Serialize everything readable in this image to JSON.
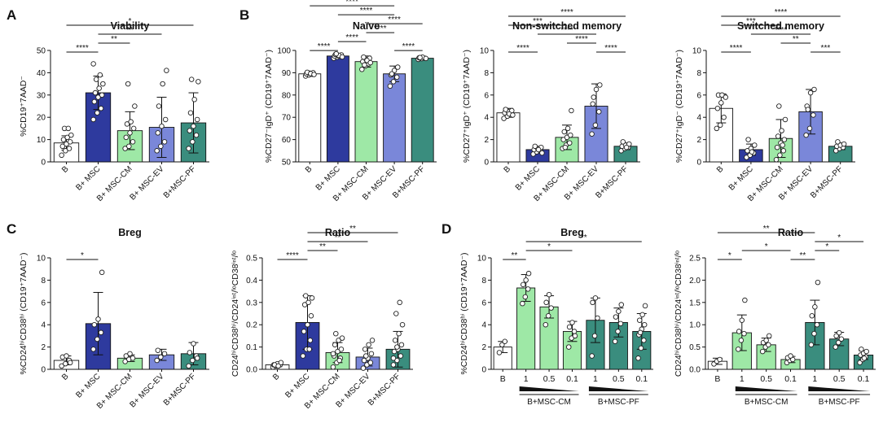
{
  "colors": {
    "B": "#ffffff",
    "MSC": "#2e3a9e",
    "CM": "#9ee8a6",
    "EV": "#7a87d9",
    "PF": "#3a8d7e"
  },
  "panel_letters": [
    "A",
    "B",
    "C",
    "D"
  ],
  "chart_data": [
    {
      "id": "viability",
      "letter": "A",
      "type": "bar",
      "title": "Viability",
      "ylabel": "%CD19⁺7AAD⁻",
      "ylim": [
        0,
        50
      ],
      "yticks": [
        0,
        10,
        20,
        30,
        40,
        50
      ],
      "categories": [
        "B",
        "B+ MSC",
        "B+ MSC-CM",
        "B+ MSC-EV",
        "B+MSC-PF"
      ],
      "groups": [
        "B",
        "MSC",
        "CM",
        "EV",
        "PF"
      ],
      "values": [
        8.5,
        31,
        14,
        15.5,
        17.5
      ],
      "sd": [
        3.2,
        7.5,
        8.5,
        13.5,
        13.5
      ],
      "points": [
        [
          3,
          5,
          6,
          7,
          8,
          9,
          10,
          11,
          12,
          15,
          15
        ],
        [
          19,
          22,
          24,
          27,
          29,
          30,
          31,
          33,
          35,
          37,
          39,
          44
        ],
        [
          6,
          7,
          9,
          11,
          13,
          15,
          17,
          18,
          25,
          35
        ],
        [
          5,
          7,
          9,
          13,
          16,
          19,
          25,
          35,
          41
        ],
        [
          6,
          9,
          12,
          14,
          16,
          19,
          22,
          28,
          36,
          37
        ]
      ],
      "significance": [
        {
          "from": 0,
          "to": 1,
          "label": "****"
        },
        {
          "from": 1,
          "to": 3,
          "label": "**"
        },
        {
          "from": 1,
          "to": 2,
          "label": "**"
        },
        {
          "from": 0,
          "to": 4,
          "label": "*"
        }
      ]
    },
    {
      "id": "naive",
      "letter": "B",
      "type": "bar",
      "title": "Naïve",
      "ylabel": "%CD27⁻IgD⁺ (CD19⁺7AAD⁻)",
      "ylim": [
        50,
        100
      ],
      "yticks": [
        50,
        60,
        70,
        80,
        90,
        100
      ],
      "categories": [
        "B",
        "B+ MSC",
        "B+ MSC-CM",
        "B+ MSC-EV",
        "B+MSC-PF"
      ],
      "groups": [
        "B",
        "MSC",
        "CM",
        "EV",
        "PF"
      ],
      "values": [
        89.5,
        97.5,
        95,
        89.5,
        96.5
      ],
      "sd": [
        0.8,
        0.8,
        2.5,
        3.5,
        0.5
      ],
      "points": [
        [
          88.5,
          89,
          89.3,
          89.5,
          89.8,
          90,
          90.2,
          89.6,
          89.2
        ],
        [
          96.5,
          97,
          97.3,
          97.5,
          97.7,
          98,
          98.2,
          97.8,
          97.1,
          98.5
        ],
        [
          91.5,
          93,
          94,
          95,
          96,
          96.5,
          97,
          95.5,
          94.5,
          93.5
        ],
        [
          84,
          86,
          88,
          89,
          91,
          92.5,
          89.5
        ],
        [
          96,
          96.3,
          96.5,
          96.7,
          97,
          96.4,
          96.8
        ]
      ],
      "significance": [
        {
          "from": 0,
          "to": 1,
          "label": "****"
        },
        {
          "from": 1,
          "to": 2,
          "label": "****"
        },
        {
          "from": 2,
          "to": 4,
          "label": "****"
        },
        {
          "from": 3,
          "to": 4,
          "label": "****"
        },
        {
          "from": 2,
          "to": 3,
          "label": "****"
        },
        {
          "from": 1,
          "to": 3,
          "label": "****"
        },
        {
          "from": 0,
          "to": 3,
          "label": "****"
        },
        {
          "from": 0,
          "to": 4,
          "label": "****"
        }
      ]
    },
    {
      "id": "nonswitched",
      "type": "bar",
      "title": "Non-switched memory",
      "ylabel": "%CD27⁺IgD⁺ (CD19⁺7AAD⁻)",
      "ylim": [
        0,
        10
      ],
      "yticks": [
        0,
        2,
        4,
        6,
        8,
        10
      ],
      "categories": [
        "B",
        "B+ MSC",
        "B+ MSC-CM",
        "B+ MSC-EV",
        "B+MSC-PF"
      ],
      "groups": [
        "B",
        "MSC",
        "CM",
        "EV",
        "PF"
      ],
      "values": [
        4.4,
        1.1,
        2.2,
        5.0,
        1.4
      ],
      "sd": [
        0.4,
        0.3,
        1.1,
        2.0,
        0.3
      ],
      "points": [
        [
          3.9,
          4.1,
          4.3,
          4.4,
          4.5,
          4.6,
          4.7,
          4.3,
          4.2
        ],
        [
          0.7,
          0.9,
          1.0,
          1.1,
          1.2,
          1.3,
          1.4,
          1.1,
          0.8
        ],
        [
          1.2,
          1.5,
          1.7,
          2.0,
          2.2,
          2.4,
          2.7,
          3.0,
          4.6,
          1.3
        ],
        [
          2.5,
          3.3,
          4.5,
          5.2,
          6.5,
          6.9,
          5.8
        ],
        [
          1.0,
          1.2,
          1.3,
          1.4,
          1.5,
          1.6,
          1.8,
          1.3
        ]
      ],
      "significance": [
        {
          "from": 0,
          "to": 1,
          "label": "****"
        },
        {
          "from": 1,
          "to": 3,
          "label": "****"
        },
        {
          "from": 3,
          "to": 4,
          "label": "****"
        },
        {
          "from": 2,
          "to": 3,
          "label": "****"
        },
        {
          "from": 0,
          "to": 2,
          "label": "***"
        },
        {
          "from": 0,
          "to": 4,
          "label": "****"
        }
      ]
    },
    {
      "id": "switched",
      "type": "bar",
      "title": "Switched memory",
      "ylabel": "%CD27⁺IgD⁻ (CD19⁺7AAD⁻)",
      "ylim": [
        0,
        10
      ],
      "yticks": [
        0,
        2,
        4,
        6,
        8,
        10
      ],
      "categories": [
        "B",
        "B+ MSC",
        "B+ MSC-CM",
        "B+ MSC-EV",
        "B+MSC-PF"
      ],
      "groups": [
        "B",
        "MSC",
        "CM",
        "EV",
        "PF"
      ],
      "values": [
        4.8,
        1.1,
        2.1,
        4.5,
        1.4
      ],
      "sd": [
        1.3,
        0.5,
        1.7,
        2.0,
        0.3
      ],
      "points": [
        [
          3.0,
          3.3,
          4.0,
          4.8,
          5.3,
          5.9,
          6.0,
          6.0,
          5.8
        ],
        [
          0.4,
          0.6,
          0.8,
          1.0,
          1.2,
          1.5,
          2.0,
          0.9
        ],
        [
          0.2,
          0.6,
          1.0,
          1.3,
          1.7,
          2.0,
          2.3,
          2.8,
          3.8,
          5.0,
          1.5
        ],
        [
          2.4,
          3.0,
          4.2,
          5.0,
          6.2,
          6.5,
          4.7
        ],
        [
          1.0,
          1.2,
          1.3,
          1.4,
          1.5,
          1.6,
          1.8
        ]
      ],
      "significance": [
        {
          "from": 0,
          "to": 1,
          "label": "****"
        },
        {
          "from": 1,
          "to": 3,
          "label": "****"
        },
        {
          "from": 3,
          "to": 4,
          "label": "***"
        },
        {
          "from": 2,
          "to": 3,
          "label": "**"
        },
        {
          "from": 0,
          "to": 2,
          "label": "***"
        },
        {
          "from": 0,
          "to": 4,
          "label": "****"
        }
      ]
    },
    {
      "id": "breg_c",
      "letter": "C",
      "type": "bar",
      "title": "Breg",
      "ylabel": "%CD24ʰⁱCD38ʰⁱ (CD19⁺7AAD⁻)",
      "ylim": [
        0,
        10
      ],
      "yticks": [
        0,
        2,
        4,
        6,
        8,
        10
      ],
      "categories": [
        "B",
        "B+ MSC",
        "B+ MSC-CM",
        "B+ MSC-EV",
        "B+MSC-PF"
      ],
      "groups": [
        "B",
        "MSC",
        "CM",
        "EV",
        "PF"
      ],
      "values": [
        0.8,
        4.1,
        1.0,
        1.3,
        1.4
      ],
      "sd": [
        0.4,
        2.8,
        0.3,
        0.5,
        1.0
      ],
      "points": [
        [
          0.3,
          0.5,
          0.8,
          1.1,
          1.2,
          0.6
        ],
        [
          1.8,
          2.7,
          3.3,
          4.0,
          4.5,
          8.7
        ],
        [
          0.7,
          0.9,
          1.0,
          1.2,
          1.4
        ],
        [
          0.8,
          1.1,
          1.4,
          1.7
        ],
        [
          0.3,
          0.8,
          1.2,
          1.5,
          2.3,
          1.0
        ]
      ],
      "significance": [
        {
          "from": 0,
          "to": 1,
          "label": "*"
        }
      ]
    },
    {
      "id": "ratio_c",
      "type": "bar",
      "title": "Ratio",
      "ylabel": "CD24ʰⁱCD38ʰⁱ/CD24ⁱⁿᵗ/ˡᵒCD38ⁱⁿᵗ/ˡᵒ",
      "ylim": [
        0,
        0.5
      ],
      "yticks": [
        "0.0",
        "0.1",
        "0.2",
        "0.3",
        "0.4",
        "0.5"
      ],
      "categories": [
        "B",
        "B+ MSC",
        "B+ MSC-CM",
        "B+ MSC-EV",
        "B+MSC-PF"
      ],
      "groups": [
        "B",
        "MSC",
        "CM",
        "EV",
        "PF"
      ],
      "values": [
        0.02,
        0.21,
        0.075,
        0.055,
        0.09
      ],
      "sd": [
        0.008,
        0.12,
        0.045,
        0.04,
        0.08
      ],
      "points": [
        [
          0.01,
          0.015,
          0.02,
          0.02,
          0.025,
          0.03,
          0.02,
          0.015
        ],
        [
          0.06,
          0.09,
          0.13,
          0.17,
          0.2,
          0.24,
          0.29,
          0.3,
          0.32,
          0.33,
          0.09
        ],
        [
          0.01,
          0.03,
          0.05,
          0.06,
          0.08,
          0.09,
          0.11,
          0.13,
          0.14,
          0.16,
          0.04,
          0.07
        ],
        [
          0.005,
          0.02,
          0.03,
          0.04,
          0.05,
          0.07,
          0.09,
          0.11,
          0.13,
          0.06
        ],
        [
          0.02,
          0.04,
          0.06,
          0.08,
          0.09,
          0.11,
          0.13,
          0.16,
          0.2,
          0.25,
          0.3,
          0.05,
          0.1
        ]
      ],
      "significance": [
        {
          "from": 0,
          "to": 1,
          "label": "****"
        },
        {
          "from": 1,
          "to": 3,
          "label": "**"
        },
        {
          "from": 1,
          "to": 2,
          "label": "**"
        },
        {
          "from": 1,
          "to": 4,
          "label": "**"
        }
      ]
    },
    {
      "id": "breg_d",
      "letter": "D",
      "type": "bar",
      "title": "Breg",
      "ylabel": "%CD24ʰⁱCD38ʰⁱ (CD19⁺7AAD⁻)",
      "ylim": [
        0,
        10
      ],
      "yticks": [
        0,
        2,
        4,
        6,
        8,
        10
      ],
      "categories": [
        "B",
        "1",
        "0.5",
        "0.1",
        "1",
        "0.5",
        "0.1"
      ],
      "groups": [
        "B",
        "CM",
        "CM",
        "CM",
        "PF",
        "PF",
        "PF"
      ],
      "group_labels": [
        "B+MSC-CM",
        "B+MSC-PF"
      ],
      "values": [
        2.0,
        7.3,
        5.6,
        3.4,
        4.4,
        4.2,
        3.4
      ],
      "sd": [
        0.5,
        1.2,
        1.0,
        0.9,
        2.0,
        1.3,
        1.6
      ],
      "points": [
        [
          1.5,
          2.2,
          2.5
        ],
        [
          5.9,
          6.5,
          7.2,
          7.6,
          8.0,
          8.6
        ],
        [
          4.0,
          4.8,
          5.5,
          6.0,
          6.7
        ],
        [
          2.0,
          2.8,
          3.4,
          3.8,
          4.2,
          3.0
        ],
        [
          1.2,
          3.0,
          4.6,
          6.0,
          6.4
        ],
        [
          2.5,
          3.4,
          4.1,
          4.7,
          5.2,
          5.8
        ],
        [
          1.0,
          1.9,
          2.6,
          3.1,
          3.6,
          4.0,
          4.4,
          4.9,
          5.7,
          3.3
        ]
      ],
      "significance": [
        {
          "from": 0,
          "to": 1,
          "label": "**"
        },
        {
          "from": 1,
          "to": 3,
          "label": "*"
        },
        {
          "from": 1,
          "to": 6,
          "label": "**"
        }
      ]
    },
    {
      "id": "ratio_d",
      "type": "bar",
      "title": "Ratio",
      "ylabel": "CD24ʰⁱCD38ʰⁱ/CD24ⁱⁿᵗ/ˡᵒCD38ⁱⁿᵗ/ˡᵒ",
      "ylim": [
        0,
        2.5
      ],
      "yticks": [
        "0.0",
        "0.5",
        "1.0",
        "1.5",
        "2.0",
        "2.5"
      ],
      "categories": [
        "B",
        "1",
        "0.5",
        "0.1",
        "1",
        "0.5",
        "0.1"
      ],
      "groups": [
        "B",
        "CM",
        "CM",
        "CM",
        "PF",
        "PF",
        "PF"
      ],
      "group_labels": [
        "B+MSC-CM",
        "B+MSC-PF"
      ],
      "values": [
        0.18,
        0.82,
        0.55,
        0.22,
        1.05,
        0.68,
        0.32
      ],
      "sd": [
        0.07,
        0.4,
        0.15,
        0.07,
        0.5,
        0.15,
        0.1
      ],
      "points": [
        [
          0.12,
          0.18,
          0.22
        ],
        [
          0.45,
          0.65,
          0.8,
          0.85,
          1.1,
          1.55
        ],
        [
          0.4,
          0.5,
          0.55,
          0.6,
          0.65,
          0.75
        ],
        [
          0.15,
          0.2,
          0.22,
          0.26,
          0.3
        ],
        [
          0.55,
          0.8,
          1.0,
          1.2,
          1.4,
          1.95
        ],
        [
          0.5,
          0.6,
          0.68,
          0.75,
          0.82
        ],
        [
          0.15,
          0.22,
          0.28,
          0.32,
          0.36,
          0.4,
          0.45,
          0.25
        ]
      ],
      "significance": [
        {
          "from": 0,
          "to": 1,
          "label": "*"
        },
        {
          "from": 1,
          "to": 3,
          "label": "*"
        },
        {
          "from": 3,
          "to": 4,
          "label": "**"
        },
        {
          "from": 4,
          "to": 6,
          "label": "*"
        },
        {
          "from": 4,
          "to": 5,
          "label": "*"
        },
        {
          "from": 0,
          "to": 4,
          "label": "**"
        }
      ]
    }
  ]
}
